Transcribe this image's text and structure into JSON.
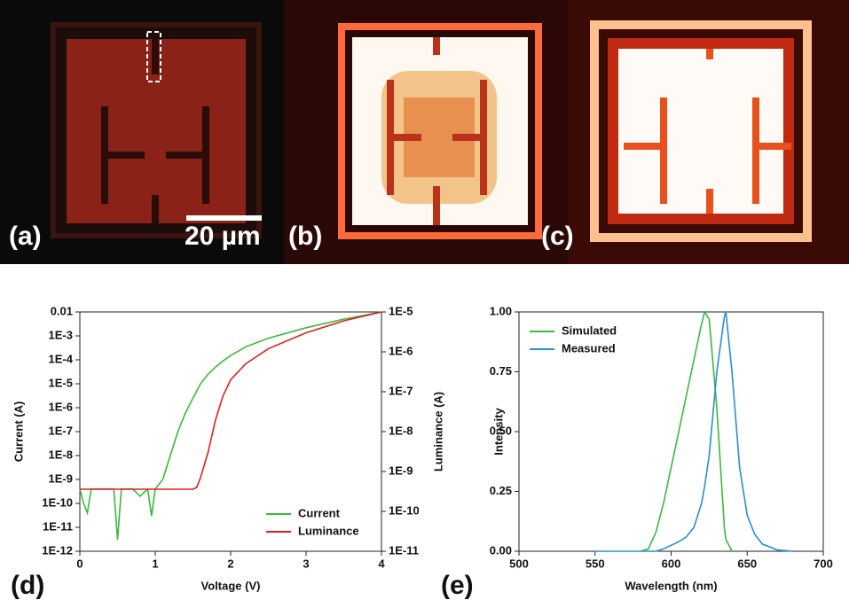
{
  "panels": [
    "(a)",
    "(b)",
    "(c)"
  ],
  "scale_bar": "20 µm",
  "chart_data": [
    {
      "type": "line",
      "panel": "(d)",
      "xlabel": "Voltage (V)",
      "ylabel": "Current (A)",
      "y2label": "Luminance (A)",
      "log_y": true,
      "log_y2": true,
      "legend": "lower-right",
      "xlim": [
        0,
        4
      ],
      "xticks": [
        0,
        1,
        2,
        3,
        4
      ],
      "ylim": [
        1e-12,
        0.01
      ],
      "yticks": [
        {
          "value": 1e-12,
          "label": "1E-12"
        },
        {
          "value": 1e-11,
          "label": "1E-11"
        },
        {
          "value": 1e-10,
          "label": "1E-10"
        },
        {
          "value": 1e-09,
          "label": "1E-9"
        },
        {
          "value": 1e-08,
          "label": "1E-8"
        },
        {
          "value": 1e-07,
          "label": "1E-7"
        },
        {
          "value": 1e-06,
          "label": "1E-6"
        },
        {
          "value": 1e-05,
          "label": "1E-5"
        },
        {
          "value": 0.0001,
          "label": "1E-4"
        },
        {
          "value": 0.001,
          "label": "1E-3"
        },
        0.01
      ],
      "y2lim": [
        1e-11,
        1e-05
      ],
      "y2ticks": [
        {
          "value": 1e-11,
          "label": "1E-11"
        },
        {
          "value": 1e-10,
          "label": "1E-10"
        },
        {
          "value": 1e-09,
          "label": "1E-9"
        },
        {
          "value": 1e-08,
          "label": "1E-8"
        },
        {
          "value": 1e-07,
          "label": "1E-7"
        },
        {
          "value": 1e-06,
          "label": "1E-6"
        },
        {
          "value": 1e-05,
          "label": "1E-5"
        }
      ],
      "x": [
        0,
        0.05,
        0.1,
        0.15,
        0.3,
        0.45,
        0.5,
        0.55,
        0.7,
        0.8,
        0.9,
        0.95,
        1.0,
        1.1,
        1.2,
        1.3,
        1.4,
        1.5,
        1.55,
        1.6,
        1.7,
        1.8,
        1.9,
        2.0,
        2.2,
        2.5,
        3.0,
        3.5,
        4.0
      ],
      "series": [
        {
          "name": "Current",
          "color": "#3cb83c",
          "values": [
            4e-10,
            1e-10,
            4e-11,
            4e-10,
            4e-10,
            4e-10,
            3e-12,
            4e-10,
            4e-10,
            2e-10,
            4e-10,
            3e-11,
            4e-10,
            1e-09,
            1e-08,
            1e-07,
            6e-07,
            2.5e-06,
            5e-06,
            1e-05,
            2.5e-05,
            5e-05,
            9e-05,
            0.00015,
            0.00035,
            0.0008,
            0.0022,
            0.005,
            0.01
          ]
        },
        {
          "name": "Luminance",
          "color": "#e02020",
          "axis": "y2",
          "values": [
            3.6e-10,
            3.6e-10,
            3.6e-10,
            3.6e-10,
            3.6e-10,
            3.6e-10,
            3.6e-10,
            3.6e-10,
            3.6e-10,
            3.6e-10,
            3.6e-10,
            3.6e-10,
            3.6e-10,
            3.6e-10,
            3.6e-10,
            3.6e-10,
            3.6e-10,
            3.6e-10,
            4e-10,
            7e-10,
            3e-09,
            2e-08,
            8e-08,
            2e-07,
            5e-07,
            1.2e-06,
            3e-06,
            6e-06,
            1e-05
          ]
        }
      ]
    },
    {
      "type": "line",
      "panel": "(e)",
      "xlabel": "Wavelength (nm)",
      "ylabel": "Intensity",
      "legend": "upper-left",
      "xlim": [
        500,
        700
      ],
      "xticks": [
        500,
        550,
        600,
        650,
        700
      ],
      "ylim": [
        0,
        1
      ],
      "yticks": [
        {
          "value": 0,
          "label": "0.00"
        },
        {
          "value": 0.25,
          "label": "0.25"
        },
        {
          "value": 0.5,
          "label": "0.50"
        },
        {
          "value": 0.75,
          "label": "0.75"
        },
        {
          "value": 1,
          "label": "1.00"
        }
      ],
      "x": [
        550,
        580,
        585,
        590,
        595,
        600,
        605,
        610,
        615,
        620,
        622,
        625,
        630,
        635,
        636,
        640,
        645,
        650,
        655,
        660,
        670,
        680,
        700
      ],
      "series": [
        {
          "name": "Simulated",
          "color": "#3cb83c",
          "values": [
            null,
            0,
            0.01,
            0.08,
            0.2,
            0.35,
            0.5,
            0.65,
            0.8,
            0.95,
            1.0,
            0.97,
            0.6,
            0.1,
            0.05,
            0,
            null,
            null,
            null,
            null,
            null,
            null,
            null
          ]
        },
        {
          "name": "Measured",
          "color": "#2a8fd0",
          "values": [
            0,
            0,
            0,
            0,
            0.01,
            0.025,
            0.04,
            0.06,
            0.1,
            0.2,
            0.27,
            0.4,
            0.75,
            0.98,
            1.0,
            0.75,
            0.35,
            0.15,
            0.07,
            0.03,
            0.005,
            0,
            null
          ]
        }
      ]
    }
  ]
}
